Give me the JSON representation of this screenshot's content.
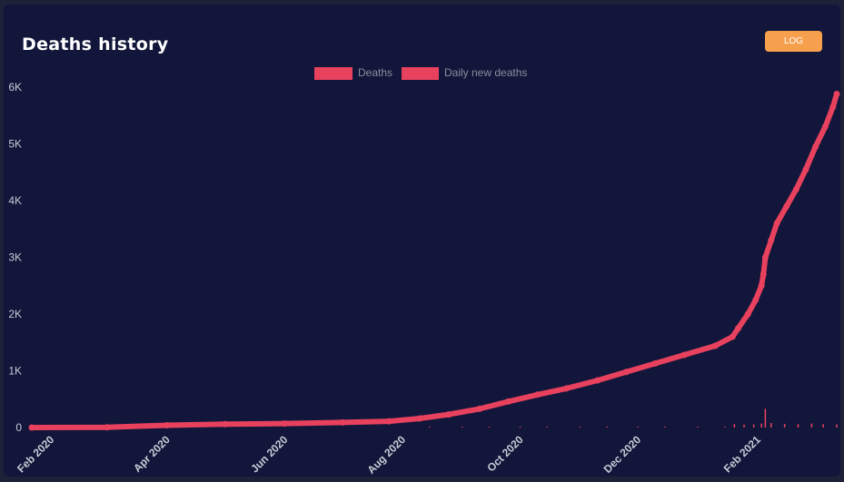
{
  "header": {
    "title": "Deaths history",
    "scale_button": "LOG"
  },
  "colors": {
    "series": "#e8415e",
    "background": "#11163a",
    "button": "#f6a04d"
  },
  "chart_data": {
    "type": "line",
    "title": "Deaths history",
    "legend": {
      "position": "top-center",
      "entries": [
        "Deaths",
        "Daily new deaths"
      ]
    },
    "ylim": [
      0,
      6000
    ],
    "y_ticks": [
      0,
      1000,
      2000,
      3000,
      4000,
      5000,
      6000
    ],
    "y_tick_labels": [
      "0",
      "1K",
      "2K",
      "3K",
      "4K",
      "5K",
      "6K"
    ],
    "x_range": [
      "2020-01-22",
      "2021-03-14"
    ],
    "x_ticks": [
      "2020-02-01",
      "2020-04-01",
      "2020-06-01",
      "2020-08-01",
      "2020-10-01",
      "2020-12-01",
      "2021-02-01"
    ],
    "x_tick_labels": [
      "Feb 2020",
      "Apr 2020",
      "Jun 2020",
      "Aug 2020",
      "Oct 2020",
      "Dec 2020",
      "Feb 2021"
    ],
    "grid": false,
    "series": [
      {
        "name": "Deaths",
        "style": "line-with-points",
        "points": [
          [
            "2020-01-22",
            0
          ],
          [
            "2020-03-01",
            5
          ],
          [
            "2020-04-01",
            40
          ],
          [
            "2020-05-01",
            60
          ],
          [
            "2020-06-01",
            70
          ],
          [
            "2020-07-01",
            90
          ],
          [
            "2020-07-25",
            110
          ],
          [
            "2020-08-10",
            160
          ],
          [
            "2020-08-25",
            230
          ],
          [
            "2020-09-10",
            330
          ],
          [
            "2020-09-25",
            460
          ],
          [
            "2020-10-10",
            580
          ],
          [
            "2020-10-25",
            690
          ],
          [
            "2020-11-10",
            830
          ],
          [
            "2020-11-25",
            980
          ],
          [
            "2020-12-10",
            1130
          ],
          [
            "2020-12-25",
            1280
          ],
          [
            "2021-01-10",
            1440
          ],
          [
            "2021-01-19",
            1600
          ],
          [
            "2021-01-22",
            1750
          ],
          [
            "2021-01-27",
            2000
          ],
          [
            "2021-01-31",
            2250
          ],
          [
            "2021-02-03",
            2500
          ],
          [
            "2021-02-04",
            2700
          ],
          [
            "2021-02-05",
            3000
          ],
          [
            "2021-02-08",
            3300
          ],
          [
            "2021-02-11",
            3600
          ],
          [
            "2021-02-16",
            3900
          ],
          [
            "2021-02-21",
            4200
          ],
          [
            "2021-02-26",
            4550
          ],
          [
            "2021-03-03",
            4950
          ],
          [
            "2021-03-08",
            5300
          ],
          [
            "2021-03-12",
            5650
          ],
          [
            "2021-03-14",
            5880
          ]
        ]
      },
      {
        "name": "Daily new deaths",
        "style": "bar",
        "points": [
          [
            "2020-08-15",
            3
          ],
          [
            "2020-09-01",
            6
          ],
          [
            "2020-09-15",
            8
          ],
          [
            "2020-10-01",
            7
          ],
          [
            "2020-10-15",
            9
          ],
          [
            "2020-11-01",
            10
          ],
          [
            "2020-11-15",
            10
          ],
          [
            "2020-12-01",
            10
          ],
          [
            "2020-12-15",
            11
          ],
          [
            "2021-01-01",
            12
          ],
          [
            "2021-01-15",
            15
          ],
          [
            "2021-01-20",
            60
          ],
          [
            "2021-01-25",
            50
          ],
          [
            "2021-01-30",
            55
          ],
          [
            "2021-02-03",
            70
          ],
          [
            "2021-02-05",
            330
          ],
          [
            "2021-02-08",
            80
          ],
          [
            "2021-02-15",
            65
          ],
          [
            "2021-02-22",
            60
          ],
          [
            "2021-03-01",
            70
          ],
          [
            "2021-03-07",
            60
          ],
          [
            "2021-03-14",
            55
          ]
        ]
      }
    ]
  }
}
